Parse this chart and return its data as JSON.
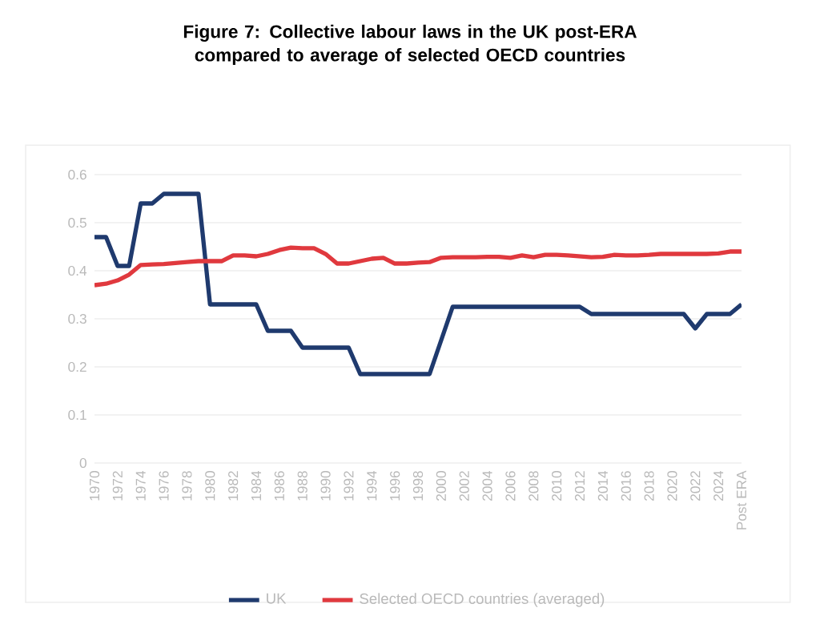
{
  "chart_data": {
    "type": "line",
    "title": "Figure 7: Collective labour laws in the UK post-ERA compared to average of selected OECD countries",
    "categories": [
      "1970",
      null,
      "1972",
      null,
      "1974",
      null,
      "1976",
      null,
      "1978",
      null,
      "1980",
      null,
      "1982",
      null,
      "1984",
      null,
      "1986",
      null,
      "1988",
      null,
      "1990",
      null,
      "1992",
      null,
      "1994",
      null,
      "1996",
      null,
      "1998",
      null,
      "2000",
      null,
      "2002",
      null,
      "2004",
      null,
      "2006",
      null,
      "2008",
      null,
      "2010",
      null,
      "2012",
      null,
      "2014",
      null,
      "2016",
      null,
      "2018",
      null,
      "2020",
      null,
      "2022",
      null,
      "2024",
      null,
      "Post ERA"
    ],
    "series": [
      {
        "name": "UK",
        "color": "#1f3a6e",
        "values": [
          0.47,
          0.47,
          0.41,
          0.41,
          0.54,
          0.54,
          0.56,
          0.56,
          0.56,
          0.56,
          0.33,
          0.33,
          0.33,
          0.33,
          0.33,
          0.275,
          0.275,
          0.275,
          0.24,
          0.24,
          0.24,
          0.24,
          0.24,
          0.185,
          0.185,
          0.185,
          0.185,
          0.185,
          0.185,
          0.185,
          0.255,
          0.325,
          0.325,
          0.325,
          0.325,
          0.325,
          0.325,
          0.325,
          0.325,
          0.325,
          0.325,
          0.325,
          0.325,
          0.31,
          0.31,
          0.31,
          0.31,
          0.31,
          0.31,
          0.31,
          0.31,
          0.31,
          0.28,
          0.31,
          0.31,
          0.31,
          0.33
        ]
      },
      {
        "name": "Selected OECD countries (averaged)",
        "color": "#e0393e",
        "values": [
          0.37,
          0.373,
          0.38,
          0.392,
          0.412,
          0.413,
          0.414,
          0.416,
          0.418,
          0.42,
          0.42,
          0.42,
          0.432,
          0.432,
          0.43,
          0.435,
          0.443,
          0.448,
          0.447,
          0.447,
          0.435,
          0.415,
          0.415,
          0.42,
          0.425,
          0.427,
          0.415,
          0.415,
          0.417,
          0.418,
          0.427,
          0.428,
          0.428,
          0.428,
          0.429,
          0.429,
          0.427,
          0.432,
          0.428,
          0.433,
          0.433,
          0.432,
          0.43,
          0.428,
          0.429,
          0.433,
          0.432,
          0.432,
          0.433,
          0.435,
          0.435,
          0.435,
          0.435,
          0.435,
          0.436,
          0.44,
          0.44
        ]
      }
    ],
    "ylim": [
      0,
      0.6
    ],
    "yticks": [
      0,
      0.1,
      0.2,
      0.3,
      0.4,
      0.5,
      0.6
    ],
    "grid": "y",
    "legend": "bottom",
    "marker": "none",
    "line_style": "solid"
  }
}
